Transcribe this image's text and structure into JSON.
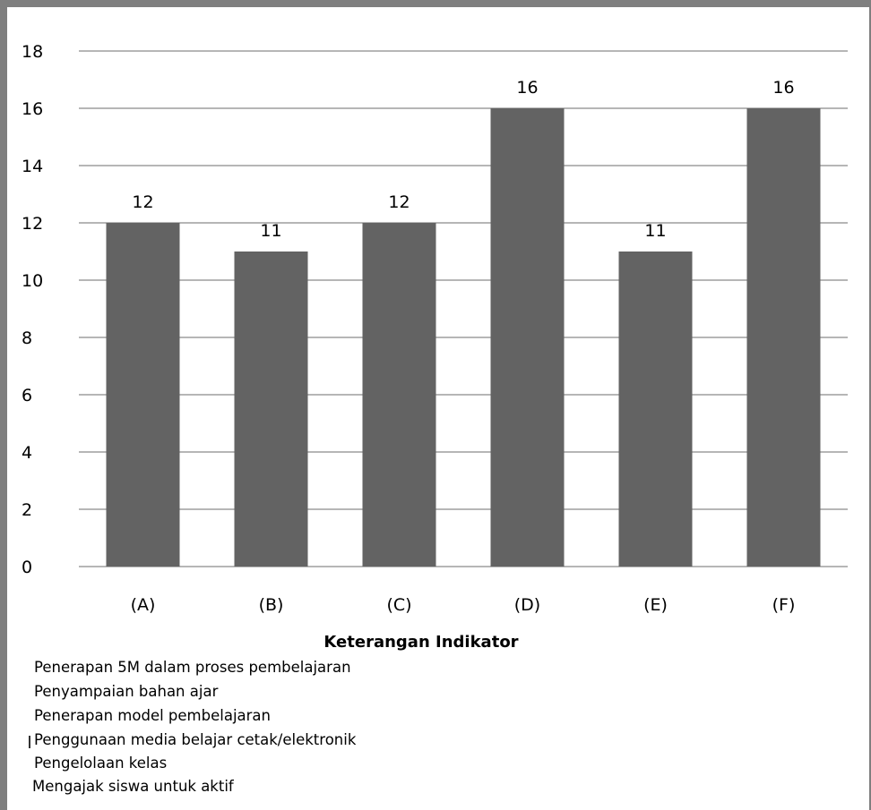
{
  "chart_data": {
    "type": "bar",
    "categories": [
      "(A)",
      "(B)",
      "(C)",
      "(D)",
      "(E)",
      "(F)"
    ],
    "values": [
      12,
      11,
      12,
      16,
      11,
      16
    ],
    "data_labels": [
      "12",
      "11",
      "12",
      "16",
      "11",
      "16"
    ],
    "ylim": [
      0,
      18
    ],
    "yticks": [
      0,
      2,
      4,
      6,
      8,
      10,
      12,
      14,
      16,
      18
    ],
    "grid": true,
    "bar_color": "#636363",
    "grid_color": "#8a8a8a"
  },
  "legend": {
    "title": "Keterangan Indikator",
    "items": [
      "Penerapan 5M dalam proses pembelajaran",
      "Penyampaian bahan ajar",
      "Penerapan model pembelajaran",
      "Penggunaan media belajar cetak/elektronik",
      "Pengelolaan kelas",
      "Mengajak siswa untuk aktif"
    ]
  }
}
